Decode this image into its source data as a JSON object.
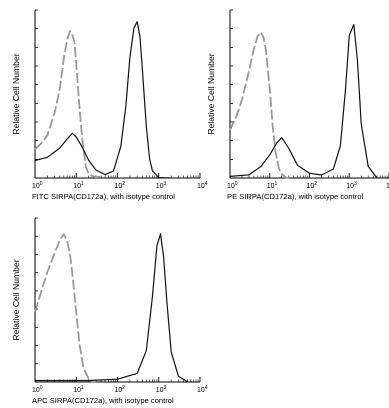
{
  "chart_data": [
    {
      "type": "line",
      "xscale": "log",
      "xlim": [
        1,
        10000
      ],
      "xlabel": "FITC SIRPA(CD172a), with isotype control",
      "ylabel": "Relative Cell Number",
      "x_ticks": [
        {
          "base": "10",
          "exp": "0"
        },
        {
          "base": "10",
          "exp": "1"
        },
        {
          "base": "10",
          "exp": "2"
        },
        {
          "base": "10",
          "exp": "3"
        },
        {
          "base": "10",
          "exp": "4"
        }
      ],
      "series": [
        {
          "style": "dashed",
          "color": "#999999",
          "x": [
            1,
            1.5,
            2,
            3,
            4,
            5,
            6,
            7,
            8,
            9,
            10,
            12,
            14,
            17,
            20,
            25,
            30,
            40
          ],
          "y": [
            0.18,
            0.22,
            0.26,
            0.4,
            0.55,
            0.74,
            0.86,
            0.92,
            0.9,
            0.86,
            0.72,
            0.45,
            0.25,
            0.08,
            0.03,
            0.01,
            0.0,
            0.0
          ]
        },
        {
          "style": "solid",
          "color": "#111111",
          "x": [
            1,
            2,
            4,
            6,
            8,
            10,
            14,
            20,
            30,
            50,
            80,
            120,
            160,
            200,
            250,
            300,
            350,
            400,
            500,
            600,
            700,
            1000,
            2000
          ],
          "y": [
            0.1,
            0.12,
            0.18,
            0.24,
            0.28,
            0.26,
            0.2,
            0.12,
            0.06,
            0.03,
            0.05,
            0.2,
            0.45,
            0.75,
            0.93,
            0.97,
            0.88,
            0.68,
            0.32,
            0.12,
            0.05,
            0.01,
            0.0
          ]
        }
      ]
    },
    {
      "type": "line",
      "xscale": "log",
      "xlim": [
        1,
        10000
      ],
      "xlabel": "PE SIRPA(CD172a), with isotype control",
      "ylabel": "Relative Cell Number",
      "x_ticks": [
        {
          "base": "10",
          "exp": "0"
        },
        {
          "base": "10",
          "exp": "1"
        },
        {
          "base": "10",
          "exp": "2"
        },
        {
          "base": "10",
          "exp": "3"
        },
        {
          "base": "1",
          "exp": ""
        }
      ],
      "series": [
        {
          "style": "dashed",
          "color": "#999999",
          "x": [
            1,
            1.5,
            2,
            3,
            4,
            5,
            6,
            7,
            8,
            10,
            12,
            14,
            17,
            20,
            25,
            30
          ],
          "y": [
            0.3,
            0.4,
            0.5,
            0.68,
            0.82,
            0.9,
            0.92,
            0.88,
            0.8,
            0.55,
            0.3,
            0.15,
            0.05,
            0.02,
            0.0,
            0.0
          ]
        },
        {
          "style": "solid",
          "color": "#111111",
          "x": [
            1,
            3,
            6,
            10,
            15,
            20,
            30,
            50,
            100,
            200,
            400,
            600,
            800,
            1000,
            1300,
            1600,
            2000,
            3000,
            5000
          ],
          "y": [
            0.02,
            0.03,
            0.08,
            0.15,
            0.22,
            0.25,
            0.18,
            0.07,
            0.02,
            0.01,
            0.05,
            0.2,
            0.55,
            0.9,
            0.97,
            0.75,
            0.35,
            0.08,
            0.0
          ]
        }
      ]
    },
    {
      "type": "line",
      "xscale": "log",
      "xlim": [
        1,
        10000
      ],
      "xlabel": "APC SIRPA(CD172a), with isotype control",
      "ylabel": "Relative Cell Number",
      "x_ticks": [
        {
          "base": "10",
          "exp": "0"
        },
        {
          "base": "10",
          "exp": "1"
        },
        {
          "base": "10",
          "exp": "2"
        },
        {
          "base": "10",
          "exp": "3"
        },
        {
          "base": "10",
          "exp": "4"
        }
      ],
      "series": [
        {
          "style": "dashed",
          "color": "#999999",
          "x": [
            1,
            1.5,
            2,
            3,
            4,
            5,
            6,
            7,
            8,
            10,
            12,
            15,
            20,
            25,
            30
          ],
          "y": [
            0.45,
            0.6,
            0.7,
            0.82,
            0.9,
            0.94,
            0.9,
            0.82,
            0.7,
            0.45,
            0.25,
            0.1,
            0.03,
            0.0,
            0.0
          ]
        },
        {
          "style": "solid",
          "color": "#111111",
          "x": [
            1,
            20,
            100,
            300,
            500,
            700,
            900,
            1100,
            1300,
            1600,
            2000,
            3000,
            5000
          ],
          "y": [
            0.0,
            0.0,
            0.01,
            0.05,
            0.2,
            0.55,
            0.88,
            0.96,
            0.82,
            0.5,
            0.2,
            0.04,
            0.0
          ]
        }
      ]
    }
  ]
}
